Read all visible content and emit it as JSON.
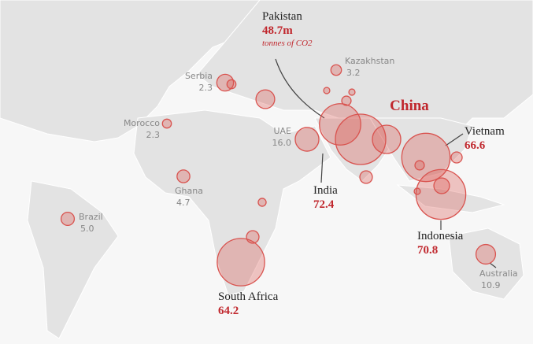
{
  "chart_data": {
    "type": "bubble-map",
    "region_label": "China",
    "unit_note": "tonnes of CO2",
    "color": "#d9534f",
    "points": [
      {
        "name": "Pakistan",
        "value": 48.7,
        "value_label": "48.7m"
      },
      {
        "name": "India",
        "value": 72.4
      },
      {
        "name": "Vietnam",
        "value": 66.6
      },
      {
        "name": "Indonesia",
        "value": 70.8
      },
      {
        "name": "South Africa",
        "value": 64.2
      },
      {
        "name": "UAE",
        "value": 16.0,
        "value_label": "16.0"
      },
      {
        "name": "Australia",
        "value": 10.9
      },
      {
        "name": "Brazil",
        "value": 5.0,
        "value_label": "5.0"
      },
      {
        "name": "Ghana",
        "value": 4.7
      },
      {
        "name": "Morocco",
        "value": 2.3
      },
      {
        "name": "Serbia",
        "value": 2.3
      },
      {
        "name": "Kazakhstan",
        "value": 3.2
      },
      {
        "name": null,
        "value": 8
      },
      {
        "name": null,
        "value": 10
      },
      {
        "name": null,
        "value": 23
      },
      {
        "name": null,
        "value": 2.5
      },
      {
        "name": null,
        "value": 1.1
      },
      {
        "name": null,
        "value": 1.1
      },
      {
        "name": null,
        "value": 4.5
      },
      {
        "name": null,
        "value": 3.5
      },
      {
        "name": null,
        "value": 2.5
      },
      {
        "name": null,
        "value": 7
      },
      {
        "name": null,
        "value": 1.8
      },
      {
        "name": null,
        "value": 4.5
      },
      {
        "name": null,
        "value": 1.1
      }
    ]
  }
}
